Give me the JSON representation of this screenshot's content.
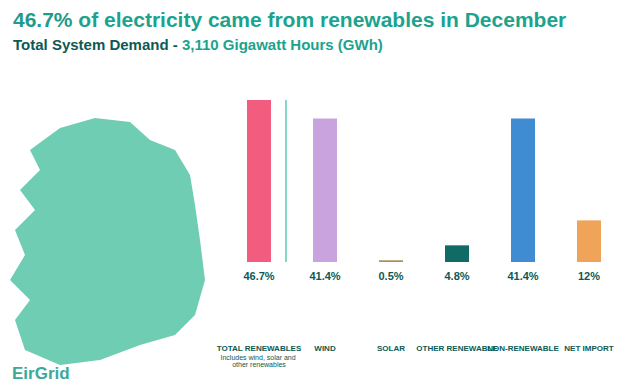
{
  "chart_data": {
    "type": "bar",
    "title": "46.7% of electricity came from renewables in December",
    "subtitle": "Total System Demand - 3,110 Gigawatt Hours (GWh)",
    "categories": [
      "TOTAL RENEWABLES",
      "WIND",
      "SOLAR",
      "OTHER RENEWABLE",
      "NON-RENEWABLE",
      "NET IMPORT"
    ],
    "values": [
      46.7,
      41.4,
      0.5,
      4.8,
      41.4,
      12
    ],
    "value_labels": [
      "46.7%",
      "41.4%",
      "0.5%",
      "4.8%",
      "41.4%",
      "12%"
    ],
    "colors": [
      "#f25c7f",
      "#c9a3dd",
      "#a8915a",
      "#0f6b63",
      "#3f8cd3",
      "#f0a45a"
    ],
    "ylim": [
      0,
      46.7
    ],
    "yticks": [
      0,
      46.7
    ],
    "grid": false,
    "data_labels": true,
    "tick_labels": "x",
    "annotations": [
      {
        "category": "TOTAL RENEWABLES",
        "text": "Includes wind, solar and other renewables"
      }
    ],
    "logo": "EirGrid"
  }
}
